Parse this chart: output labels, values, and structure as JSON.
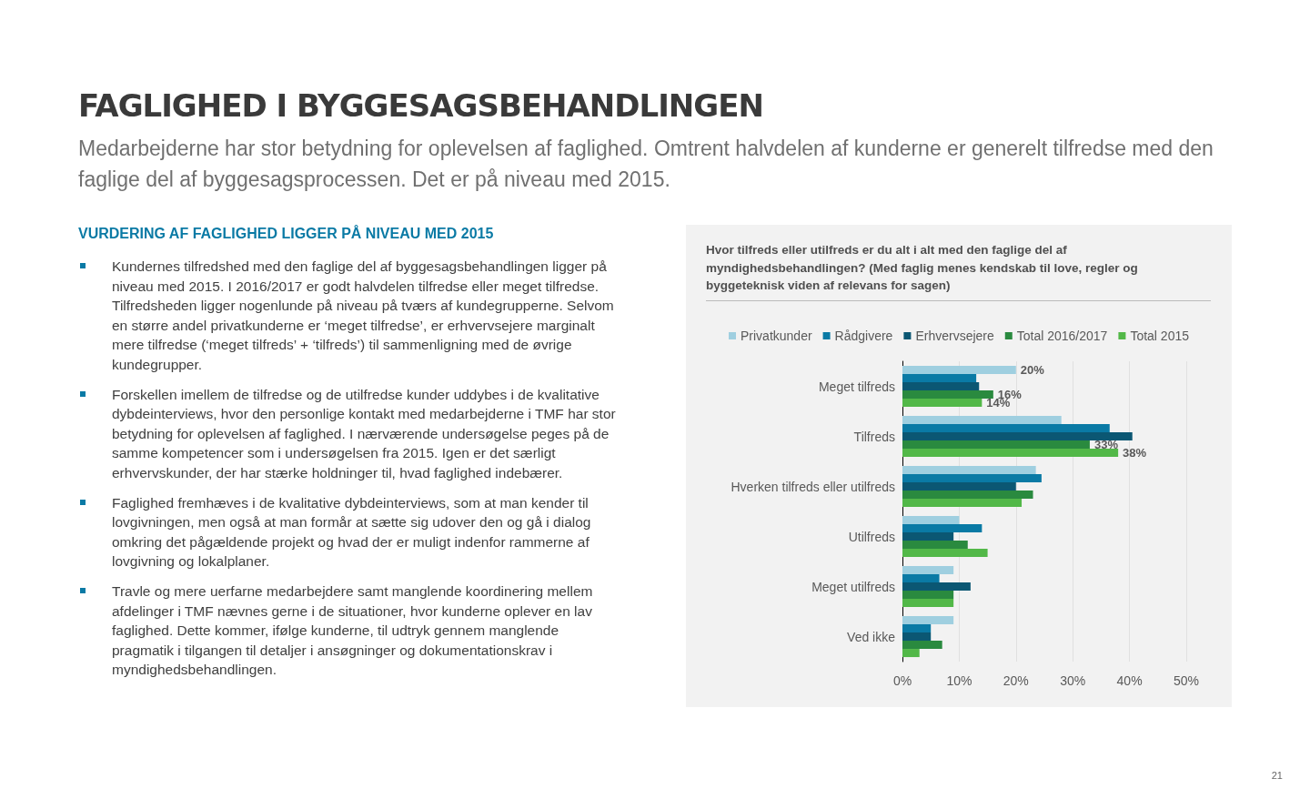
{
  "chart_data": {
    "type": "bar",
    "orientation": "horizontal",
    "title": "FAGLIGHED I BYGGESAGSBEHANDLINGEN",
    "subtitle": "Medarbejderne har stor betydning for oplevelsen af faglighed. Omtrent halvdelen af kunderne er generelt tilfredse med den faglige del af byggesagsprocessen. Det er på niveau med 2015.",
    "annotations": [
      "VURDERING AF FAGLIGHED LIGGER PÅ NIVEAU MED 2015",
      "Kundernes tilfredshed med den faglige del af byggesagsbehandlingen ligger på niveau med 2015. I 2016/2017 er godt halvdelen tilfredse eller meget tilfredse. Tilfredsheden ligger nogenlunde på niveau på tværs af kundegrupperne. Selvom en større andel privatkunderne er ‘meget tilfredse’, er erhvervsejere marginalt mere tilfredse (‘meget tilfreds’ + ‘tilfreds’) til sammenligning med de øvrige kundegrupper.",
      "Forskellen imellem de tilfredse og de utilfredse kunder uddybes i de kvalitative dybdeinterviews, hvor den personlige kontakt med medarbejderne i TMF har stor betydning for oplevelsen af faglighed. I nærværende undersøgelse peges på de samme kompetencer som i undersøgelsen fra 2015. Igen er det særligt erhvervskunder, der har stærke holdninger til, hvad faglighed indebærer.",
      "Faglighed fremhæves i de kvalitative dybdeinterviews, som at man kender til lovgivningen, men også at man formår at sætte sig udover den og gå i dialog omkring det pågældende projekt og hvad der er muligt indenfor rammerne af lovgivning og lokalplaner.",
      "Travle og mere uerfarne medarbejdere samt manglende koordinering mellem afdelinger i TMF nævnes gerne i de situationer, hvor kunderne oplever en lav faglighed. Dette kommer, ifølge kunderne, til udtryk gennem manglende pragmatik i tilgangen til detaljer i ansøgninger og dokumentationskrav i myndighedsbehandlingen.",
      "Hvor tilfreds eller utilfreds er du alt i alt med den faglige del af myndighedsbehandlingen? (Med faglig menes kendskab til love, regler og byggeteknisk viden af relevans for sagen)",
      "21"
    ],
    "categories": [
      "Meget tilfreds",
      "Tilfreds",
      "Hverken tilfreds eller utilfreds",
      "Utilfreds",
      "Meget utilfreds",
      "Ved ikke"
    ],
    "series": [
      {
        "name": "Privatkunder",
        "color": "#9fcfe0",
        "values": [
          20,
          28,
          23.5,
          10,
          9,
          9
        ],
        "value_labels": [
          "20%",
          null,
          null,
          null,
          null,
          null
        ]
      },
      {
        "name": "Rådgivere",
        "color": "#0a7aa5",
        "values": [
          13,
          36.5,
          24.5,
          14,
          6.5,
          5
        ]
      },
      {
        "name": "Erhvervsejere",
        "color": "#0b5773",
        "values": [
          13.5,
          40.5,
          20,
          9,
          12,
          5
        ]
      },
      {
        "name": "Total 2016/2017",
        "color": "#2a8a3f",
        "values": [
          16,
          33,
          23,
          11.5,
          9,
          7
        ],
        "value_labels": [
          "16%",
          "33%",
          null,
          null,
          null,
          null
        ]
      },
      {
        "name": "Total 2015",
        "color": "#52b848",
        "values": [
          14,
          38,
          21,
          15,
          9,
          3
        ],
        "value_labels": [
          "14%",
          "38%",
          null,
          null,
          null,
          null
        ]
      }
    ],
    "xlim": [
      0,
      50
    ],
    "xticks": [
      {
        "value": 0,
        "label": "0%"
      },
      {
        "value": 10,
        "label": "10%"
      },
      {
        "value": 20,
        "label": "20%"
      },
      {
        "value": 30,
        "label": "30%"
      },
      {
        "value": 40,
        "label": "40%"
      },
      {
        "value": 50,
        "label": "50%"
      }
    ],
    "grid": "x",
    "legend": "top"
  }
}
